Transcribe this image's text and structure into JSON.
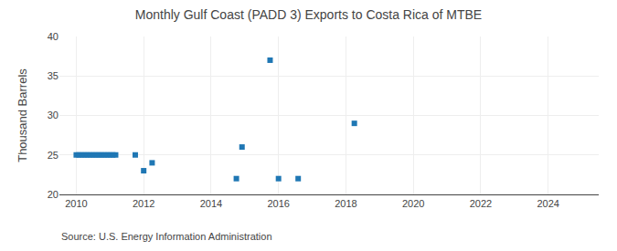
{
  "chart_data": {
    "type": "scatter",
    "title": "Monthly Gulf Coast (PADD 3) Exports to Costa Rica of MTBE",
    "ylabel": "Thousand Barrels",
    "annotations": [
      "Source: U.S. Energy Information Administration"
    ],
    "x": [
      2010.0,
      2010.083,
      2010.167,
      2010.25,
      2010.333,
      2010.417,
      2010.5,
      2010.583,
      2010.667,
      2010.75,
      2010.833,
      2010.917,
      2011.0,
      2011.083,
      2011.167,
      2011.75,
      2012.0,
      2012.25,
      2014.75,
      2014.917,
      2015.75,
      2016.0,
      2016.583,
      2018.25
    ],
    "values": [
      25,
      25,
      25,
      25,
      25,
      25,
      25,
      25,
      25,
      25,
      25,
      25,
      25,
      25,
      25,
      25,
      23,
      24,
      22,
      26,
      37,
      22,
      22,
      29
    ],
    "marker": "square",
    "xlim": [
      2009.5,
      2025.5
    ],
    "xticks": [
      2010,
      2012,
      2014,
      2016,
      2018,
      2020,
      2022,
      2024
    ],
    "ylim": [
      20,
      40
    ],
    "yticks": [
      20,
      25,
      30,
      35,
      40
    ],
    "grid": true
  }
}
